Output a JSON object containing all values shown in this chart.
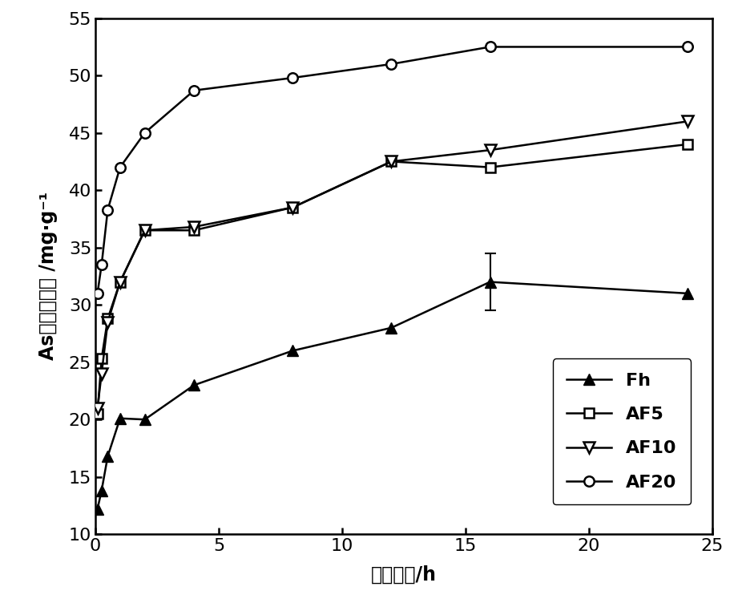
{
  "x": [
    0.083,
    0.25,
    0.5,
    1.0,
    2.0,
    4.0,
    8.0,
    12.0,
    16.0,
    24.0
  ],
  "Fh": [
    12.2,
    13.8,
    16.8,
    20.1,
    20.0,
    23.0,
    26.0,
    28.0,
    32.0,
    31.0
  ],
  "AF5": [
    20.5,
    25.3,
    28.8,
    32.0,
    36.5,
    36.5,
    38.5,
    42.5,
    42.0,
    44.0
  ],
  "AF10": [
    21.0,
    24.0,
    28.5,
    32.0,
    36.5,
    36.8,
    38.5,
    42.5,
    43.5,
    46.0
  ],
  "AF20": [
    31.0,
    33.5,
    38.3,
    42.0,
    45.0,
    48.7,
    49.8,
    51.0,
    52.5,
    52.5
  ],
  "Fh_err_x": 16.0,
  "Fh_err_y": 32.0,
  "Fh_err": 2.5,
  "ylabel": "As的吸附容量 /mg·g⁻¹",
  "xlabel": "反应时间/h",
  "xlim": [
    0,
    25
  ],
  "ylim": [
    10,
    55
  ],
  "yticks": [
    10,
    15,
    20,
    25,
    30,
    35,
    40,
    45,
    50,
    55
  ],
  "xticks": [
    0,
    5,
    10,
    15,
    20,
    25
  ],
  "legend_labels": [
    "Fh",
    "AF5",
    "AF10",
    "AF20"
  ],
  "line_color": "#000000",
  "bg_color": "#ffffff"
}
